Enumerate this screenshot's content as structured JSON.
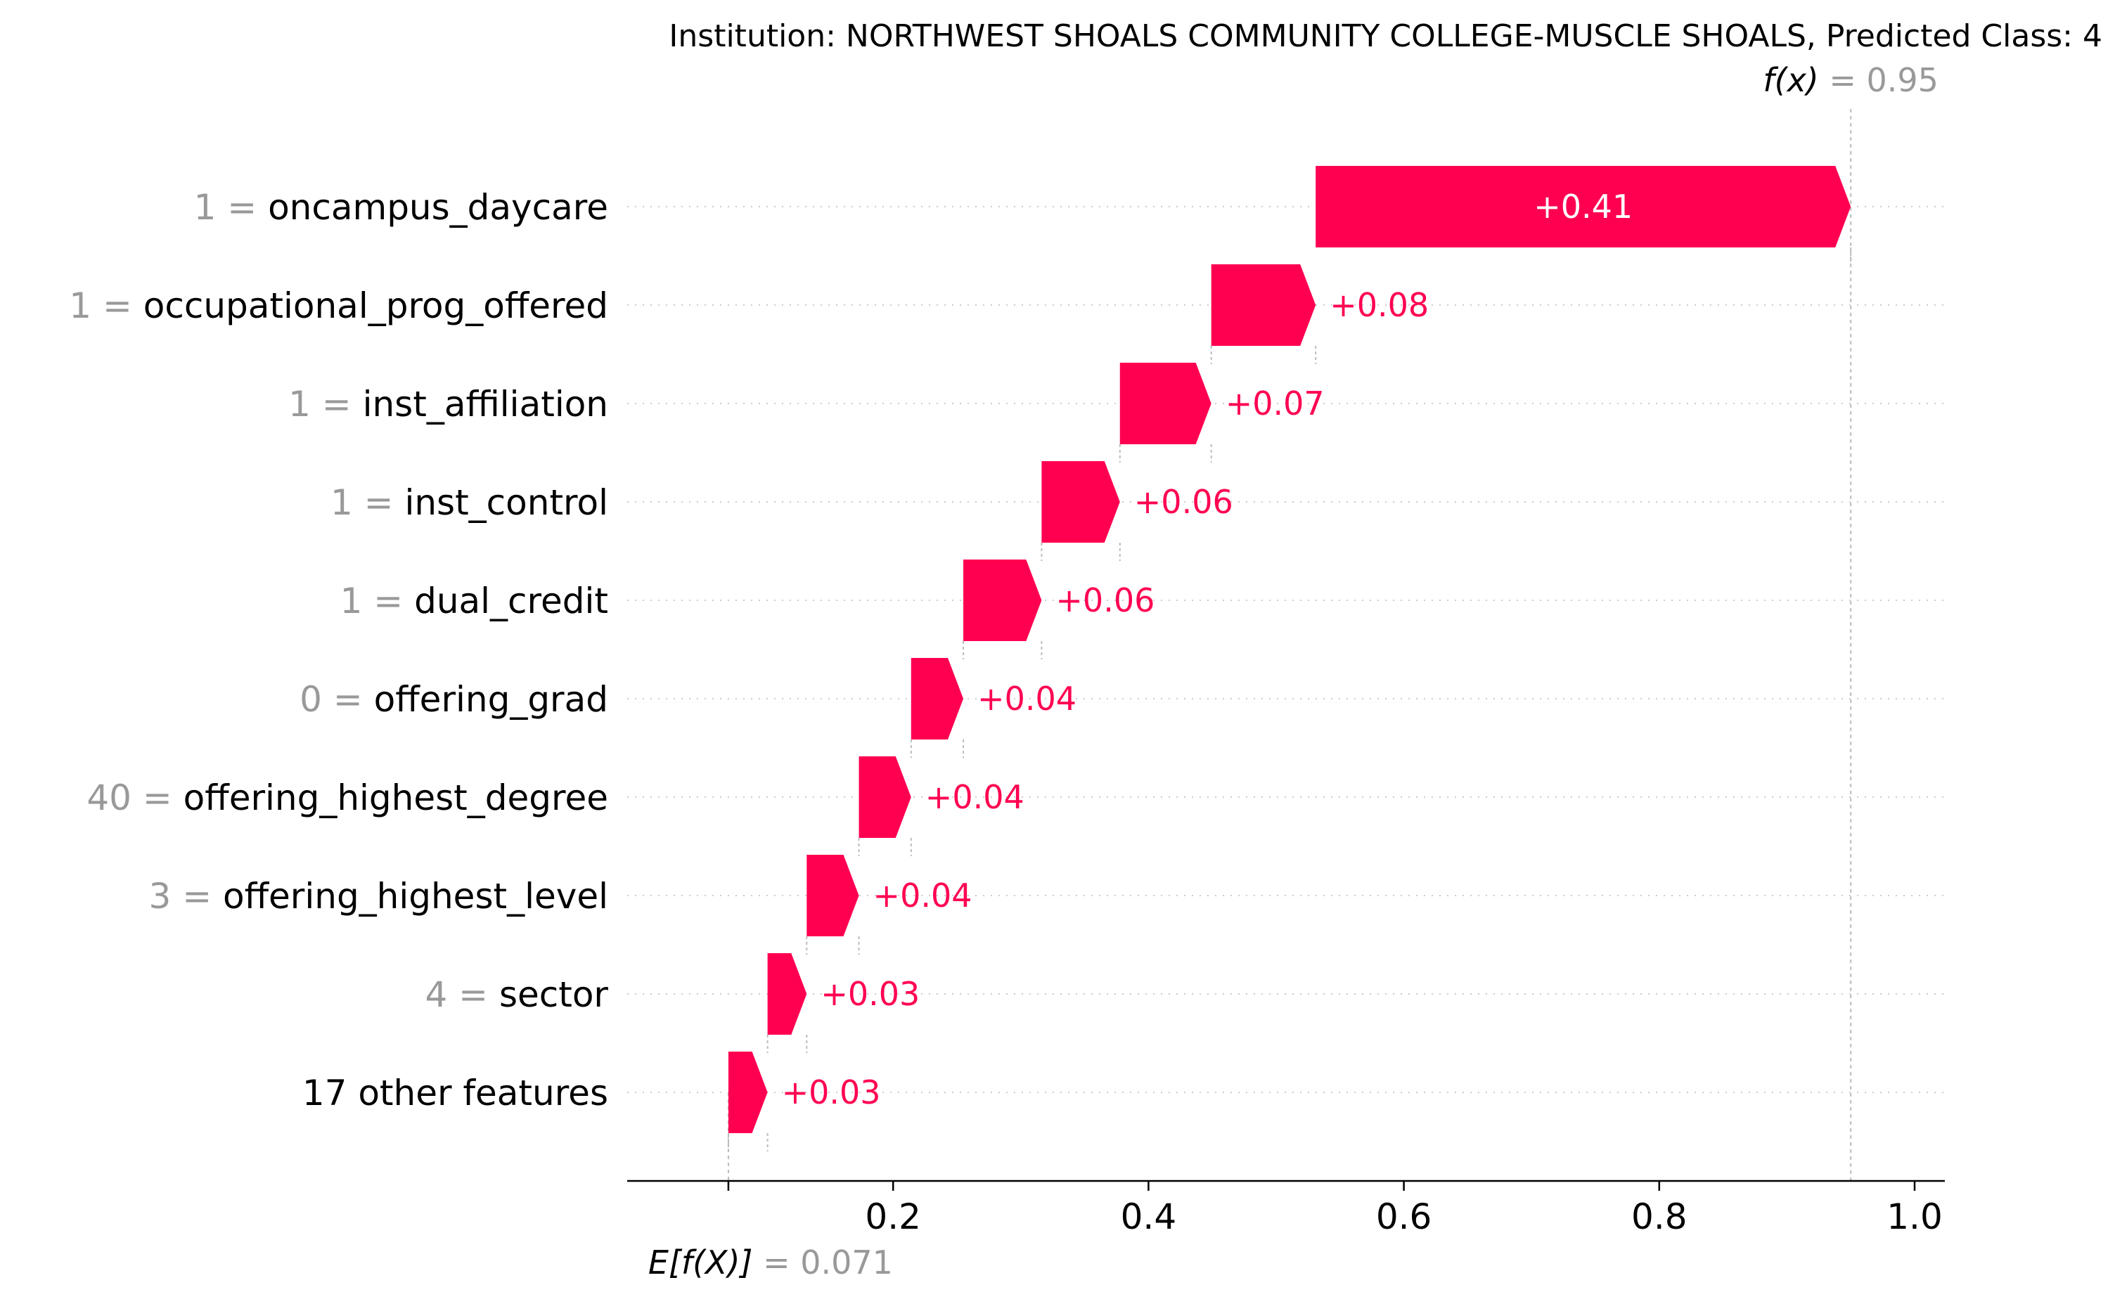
{
  "chart_data": {
    "type": "waterfall",
    "title": "Institution: NORTHWEST SHOALS COMMUNITY COLLEGE-MUSCLE SHOALS, Predicted Class: 4",
    "base_value": 0.071,
    "base_value_text": "0.071",
    "base_label": "E[f(X)]",
    "output_value": 0.95,
    "output_value_text": "0.95",
    "output_label": "f(x)",
    "xlim": [
      0.0,
      1.1
    ],
    "xticks": [
      0.2,
      0.4,
      0.6,
      0.8,
      1.0
    ],
    "xtick_labels": [
      "0.2",
      "0.4",
      "0.6",
      "0.8",
      "1.0"
    ],
    "features": [
      {
        "value": "1",
        "name": "oncampus_daycare",
        "contribution": 0.41,
        "label": "+0.41"
      },
      {
        "value": "1",
        "name": "occupational_prog_offered",
        "contribution": 0.08,
        "label": "+0.08"
      },
      {
        "value": "1",
        "name": "inst_affiliation",
        "contribution": 0.07,
        "label": "+0.07"
      },
      {
        "value": "1",
        "name": "inst_control",
        "contribution": 0.06,
        "label": "+0.06"
      },
      {
        "value": "1",
        "name": "dual_credit",
        "contribution": 0.06,
        "label": "+0.06"
      },
      {
        "value": "0",
        "name": "offering_grad",
        "contribution": 0.04,
        "label": "+0.04"
      },
      {
        "value": "40",
        "name": "offering_highest_degree",
        "contribution": 0.04,
        "label": "+0.04"
      },
      {
        "value": "3",
        "name": "offering_highest_level",
        "contribution": 0.04,
        "label": "+0.04"
      },
      {
        "value": "4",
        "name": "sector",
        "contribution": 0.03,
        "label": "+0.03"
      },
      {
        "value": "",
        "name": "17 other features",
        "contribution": 0.03,
        "label": "+0.03"
      }
    ],
    "colors": {
      "positive": "#ff0051",
      "value_text": "#999999",
      "grid": "#cccccc"
    }
  }
}
